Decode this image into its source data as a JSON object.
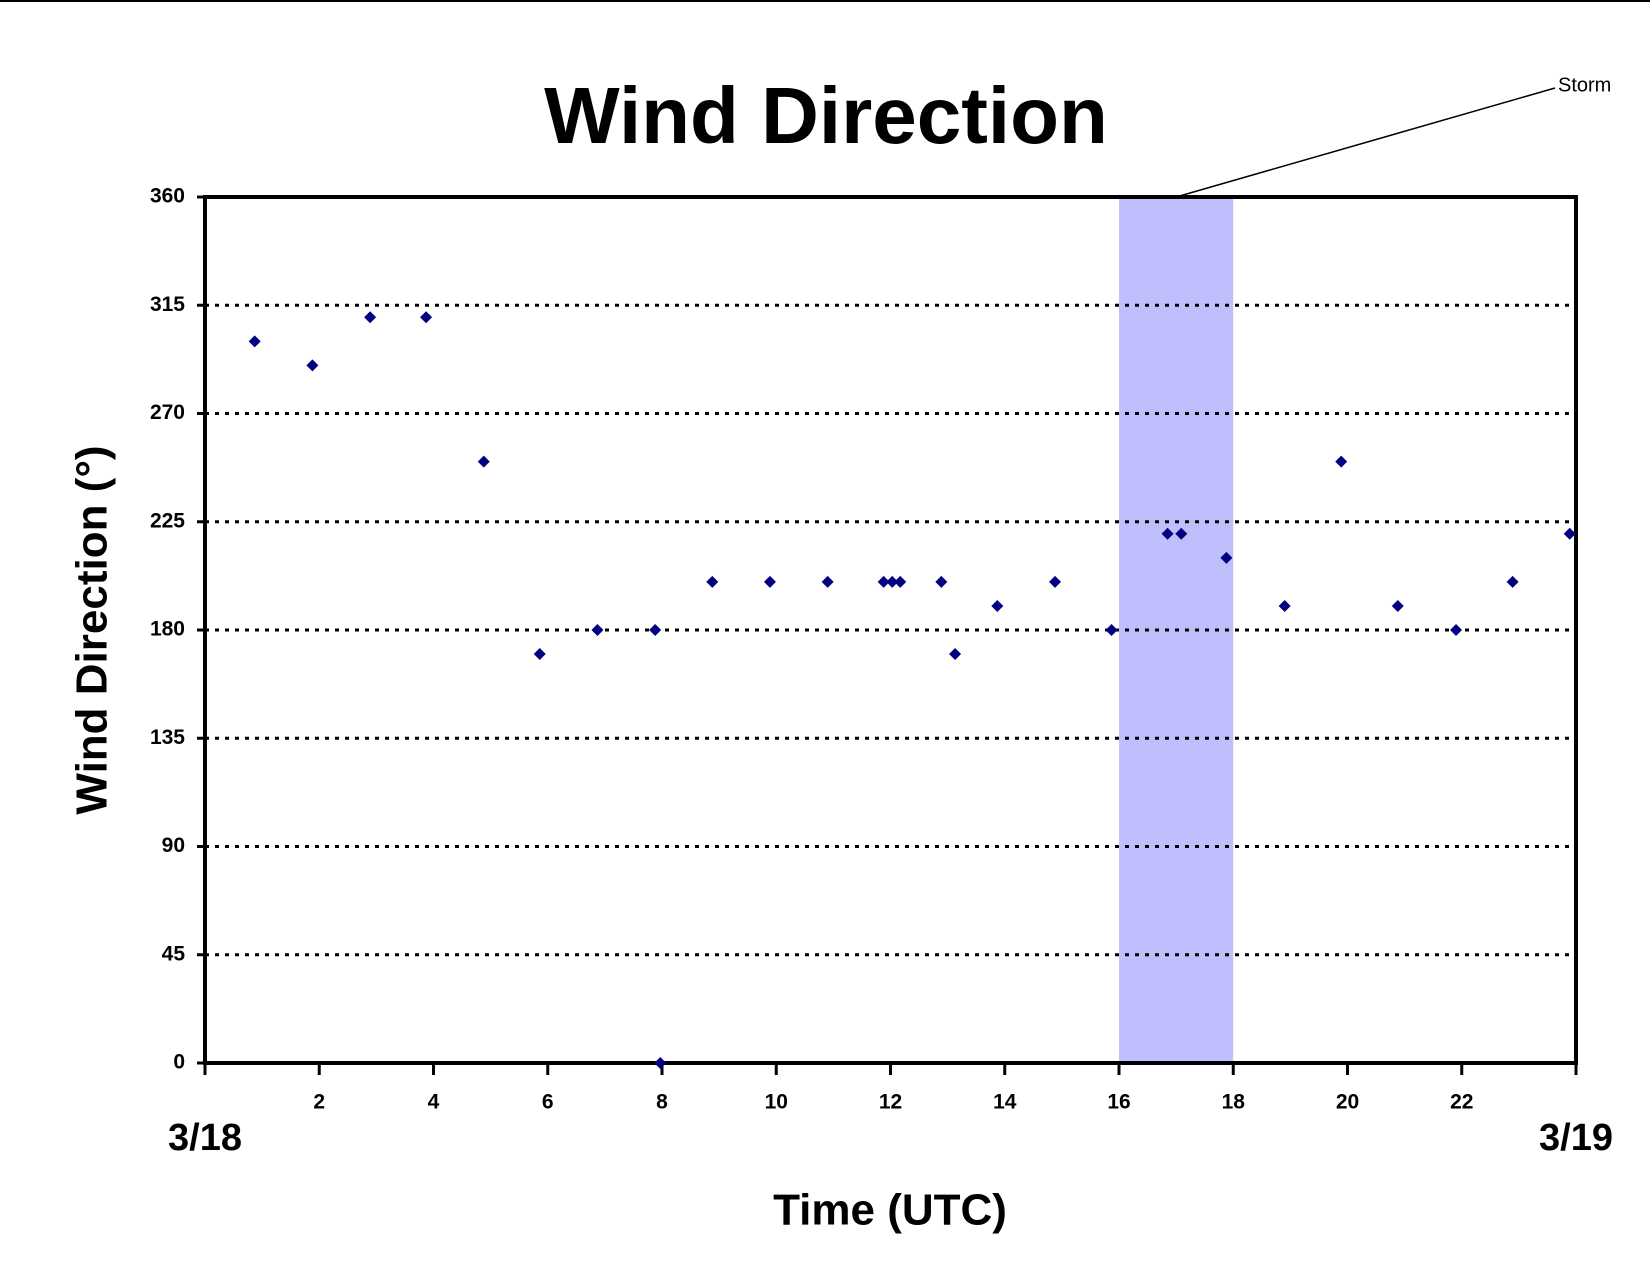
{
  "chart_data": {
    "type": "scatter",
    "title": "Wind Direction",
    "x_label": "Time (UTC)",
    "y_label": "Wind Direction (°)",
    "start_label": "3/18",
    "end_label": "3/19",
    "highlight": {
      "label": "Storm",
      "x": [
        16,
        18
      ],
      "color": "#bfbffd"
    },
    "grid": true,
    "xlim": [
      0,
      24
    ],
    "xticks": [
      2,
      4,
      6,
      8,
      10,
      12,
      14,
      16,
      18,
      20,
      22
    ],
    "ylim": [
      0,
      360
    ],
    "yticks": [
      0,
      45,
      90,
      135,
      180,
      225,
      270,
      315,
      360
    ],
    "color": "#000080",
    "x": [
      0.87,
      1.88,
      2.89,
      3.87,
      4.88,
      5.86,
      6.87,
      7.88,
      7.97,
      8.88,
      9.89,
      10.9,
      11.88,
      12.03,
      12.17,
      12.89,
      13.13,
      13.87,
      14.88,
      15.87,
      16.85,
      17.09,
      17.88,
      18.9,
      19.89,
      20.88,
      21.9,
      22.89,
      23.89
    ],
    "values": [
      300,
      290,
      310,
      310,
      250,
      170,
      180,
      180,
      0,
      200,
      200,
      200,
      200,
      200,
      200,
      200,
      170,
      190,
      200,
      180,
      220,
      220,
      210,
      190,
      250,
      190,
      180,
      200,
      220
    ]
  }
}
